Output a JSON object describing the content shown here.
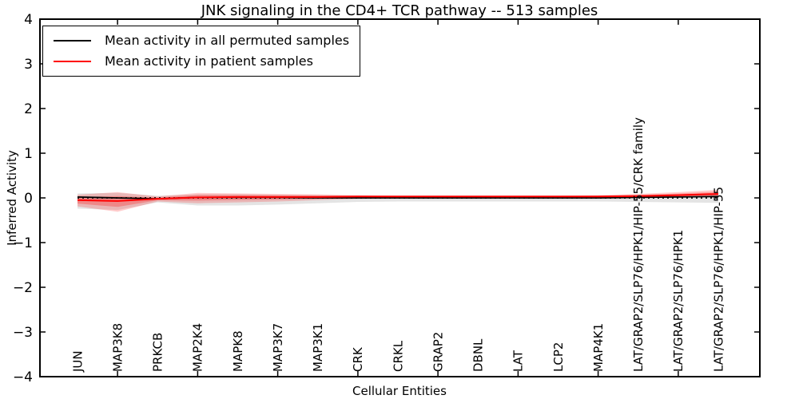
{
  "chart_data": {
    "type": "line",
    "title": "JNK signaling in the CD4+ TCR pathway -- 513 samples",
    "xlabel": "Cellular Entities",
    "ylabel": "Inferred Activity",
    "ylim": [
      -4,
      4
    ],
    "ytick_labels": [
      "4",
      "3",
      "2",
      "1",
      "0",
      "−1",
      "−2",
      "−3",
      "−4"
    ],
    "ytick_values": [
      4,
      3,
      2,
      1,
      0,
      -1,
      -2,
      -3,
      -4
    ],
    "grid": false,
    "legend_position": "upper-left",
    "categories": [
      "JUN",
      "MAP3K8",
      "PRKCB",
      "MAP2K4",
      "MAPK8",
      "MAP3K7",
      "MAP3K1",
      "CRK",
      "CRKL",
      "GRAP2",
      "DBNL",
      "LAT",
      "LCP2",
      "MAP4K1",
      "LAT/GRAP2/SLP76/HPK1/HIP-55/CRK family",
      "LAT/GRAP2/SLP76/HPK1",
      "LAT/GRAP2/SLP76/HPK1/HIP-55"
    ],
    "series": [
      {
        "name": "Mean activity in all permuted samples",
        "color": "#000000",
        "band_color": "#555555",
        "values": [
          0.02,
          0.0,
          -0.02,
          0.01,
          0.01,
          0.01,
          0.0,
          0.0,
          0.0,
          0.0,
          0.0,
          0.0,
          0.0,
          0.0,
          0.01,
          0.02,
          0.03
        ],
        "band_upper": [
          0.1,
          0.11,
          0.05,
          0.08,
          0.08,
          0.07,
          0.06,
          0.05,
          0.05,
          0.05,
          0.05,
          0.05,
          0.05,
          0.05,
          0.06,
          0.08,
          0.1
        ],
        "band_lower": [
          -0.24,
          -0.27,
          -0.1,
          -0.17,
          -0.17,
          -0.15,
          -0.12,
          -0.09,
          -0.08,
          -0.08,
          -0.08,
          -0.08,
          -0.08,
          -0.08,
          -0.09,
          -0.1,
          -0.11
        ]
      },
      {
        "name": "Mean activity in patient samples",
        "color": "#ff0000",
        "band_color": "#ff0000",
        "values": [
          -0.05,
          -0.07,
          -0.02,
          0.01,
          0.02,
          0.02,
          0.02,
          0.03,
          0.03,
          0.03,
          0.03,
          0.03,
          0.03,
          0.03,
          0.04,
          0.06,
          0.09
        ],
        "band_upper": [
          0.07,
          0.13,
          0.03,
          0.11,
          0.1,
          0.09,
          0.08,
          0.06,
          0.05,
          0.05,
          0.05,
          0.05,
          0.05,
          0.06,
          0.09,
          0.13,
          0.18
        ],
        "band_lower": [
          -0.19,
          -0.31,
          -0.08,
          -0.12,
          -0.1,
          -0.08,
          -0.05,
          -0.02,
          -0.01,
          -0.01,
          -0.01,
          0.0,
          0.0,
          0.0,
          0.0,
          0.01,
          0.02
        ]
      }
    ],
    "zero_line": {
      "value": 0,
      "style": "dotted",
      "color": "#000000"
    }
  },
  "legend": {
    "entries": [
      {
        "label": "Mean activity in all permuted samples",
        "color": "#000000"
      },
      {
        "label": "Mean activity in patient samples",
        "color": "#ff0000"
      }
    ]
  }
}
